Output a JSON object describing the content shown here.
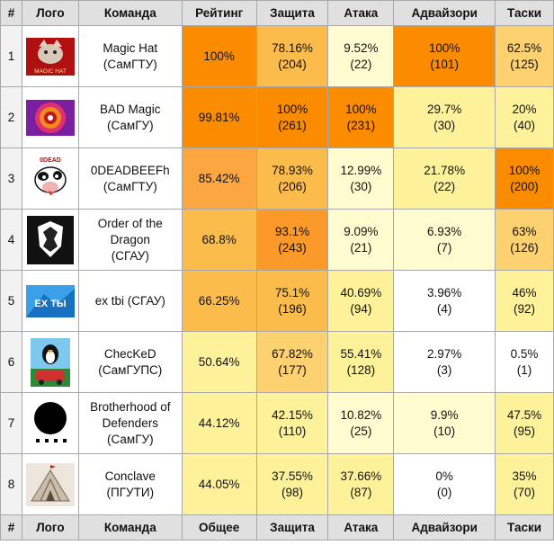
{
  "header": {
    "num": "#",
    "logo": "Лого",
    "team": "Команда",
    "rating": "Рейтинг",
    "defense": "Защита",
    "attack": "Атака",
    "advisory": "Адвайзори",
    "tasks": "Таски"
  },
  "footer": {
    "num": "#",
    "logo": "Лого",
    "team": "Команда",
    "rating": "Общее",
    "defense": "Защита",
    "attack": "Атака",
    "advisory": "Адвайзори",
    "tasks": "Таски"
  },
  "colors": {
    "c1": "#fb8c00",
    "c2": "#fba640",
    "c3": "#fdd070",
    "c4": "#fdf29a",
    "c5": "#fffdd0",
    "c6": "#ffffff"
  },
  "rows": [
    {
      "num": "1",
      "logo_icon": "magic-hat-logo",
      "logo_text": "MAGIC HAT",
      "team": "Magic Hat",
      "org": "(СамГТУ)",
      "rating": "100%",
      "rating_c": "#fb8c00",
      "defense": "78.16%",
      "defense_n": "(204)",
      "defense_c": "#fcbc4c",
      "attack": "9.52%",
      "attack_n": "(22)",
      "attack_c": "#fffdd0",
      "advisory": "100%",
      "advisory_n": "(101)",
      "advisory_c": "#fb8c00",
      "tasks": "62.5%",
      "tasks_n": "(125)",
      "tasks_c": "#fdd070"
    },
    {
      "num": "2",
      "logo_icon": "bad-magic-logo",
      "team": "BAD Magic",
      "org": "(СамГУ)",
      "rating": "99.81%",
      "rating_c": "#fb8c00",
      "defense": "100%",
      "defense_n": "(261)",
      "defense_c": "#fb8c00",
      "attack": "100%",
      "attack_n": "(231)",
      "attack_c": "#fb8c00",
      "advisory": "29.7%",
      "advisory_n": "(30)",
      "advisory_c": "#fdf29a",
      "tasks": "20%",
      "tasks_n": "(40)",
      "tasks_c": "#fdf29a"
    },
    {
      "num": "3",
      "logo_icon": "deadbeef-cow-logo",
      "logo_text": "0DEAD",
      "team": "0DEADBEEFh",
      "org": "(СамГТУ)",
      "rating": "85.42%",
      "rating_c": "#fba640",
      "defense": "78.93%",
      "defense_n": "(206)",
      "defense_c": "#fcbc4c",
      "attack": "12.99%",
      "attack_n": "(30)",
      "attack_c": "#fffdd0",
      "advisory": "21.78%",
      "advisory_n": "(22)",
      "advisory_c": "#fdf29a",
      "tasks": "100%",
      "tasks_n": "(200)",
      "tasks_c": "#fb8c00"
    },
    {
      "num": "4",
      "logo_icon": "order-of-dragon-logo",
      "team": "Order of the Dragon",
      "org": "(СГАУ)",
      "rating": "68.8%",
      "rating_c": "#fcbc4c",
      "defense": "93.1%",
      "defense_n": "(243)",
      "defense_c": "#fb9a28",
      "attack": "9.09%",
      "attack_n": "(21)",
      "attack_c": "#fffdd0",
      "advisory": "6.93%",
      "advisory_n": "(7)",
      "advisory_c": "#fffdd0",
      "tasks": "63%",
      "tasks_n": "(126)",
      "tasks_c": "#fdd070"
    },
    {
      "num": "5",
      "logo_icon": "ex-tbi-logo",
      "logo_text": "EX ТЫ",
      "team": "ex tbi (СГАУ)",
      "org": "",
      "rating": "66.25%",
      "rating_c": "#fcbc4c",
      "defense": "75.1%",
      "defense_n": "(196)",
      "defense_c": "#fcbc4c",
      "attack": "40.69%",
      "attack_n": "(94)",
      "attack_c": "#fdf29a",
      "advisory": "3.96%",
      "advisory_n": "(4)",
      "advisory_c": "#ffffff",
      "tasks": "46%",
      "tasks_n": "(92)",
      "tasks_c": "#fdf29a"
    },
    {
      "num": "6",
      "logo_icon": "checked-penguin-logo",
      "team": "ChecKeD",
      "org": "(СамГУПС)",
      "rating": "50.64%",
      "rating_c": "#fdf29a",
      "defense": "67.82%",
      "defense_n": "(177)",
      "defense_c": "#fdd070",
      "attack": "55.41%",
      "attack_n": "(128)",
      "attack_c": "#fdf29a",
      "advisory": "2.97%",
      "advisory_n": "(3)",
      "advisory_c": "#ffffff",
      "tasks": "0.5%",
      "tasks_n": "(1)",
      "tasks_c": "#ffffff"
    },
    {
      "num": "7",
      "logo_icon": "brotherhood-logo",
      "team": "Brotherhood of Defenders",
      "org": "(СамГУ)",
      "rating": "44.12%",
      "rating_c": "#fdf29a",
      "defense": "42.15%",
      "defense_n": "(110)",
      "defense_c": "#fdf29a",
      "attack": "10.82%",
      "attack_n": "(25)",
      "attack_c": "#fffdd0",
      "advisory": "9.9%",
      "advisory_n": "(10)",
      "advisory_c": "#fffdd0",
      "tasks": "47.5%",
      "tasks_n": "(95)",
      "tasks_c": "#fdf29a"
    },
    {
      "num": "8",
      "logo_icon": "conclave-logo",
      "team": "Conclave",
      "org": "(ПГУТИ)",
      "rating": "44.05%",
      "rating_c": "#fdf29a",
      "defense": "37.55%",
      "defense_n": "(98)",
      "defense_c": "#fdf29a",
      "attack": "37.66%",
      "attack_n": "(87)",
      "attack_c": "#fdf29a",
      "advisory": "0%",
      "advisory_n": "(0)",
      "advisory_c": "#ffffff",
      "tasks": "35%",
      "tasks_n": "(70)",
      "tasks_c": "#fdf29a"
    }
  ]
}
